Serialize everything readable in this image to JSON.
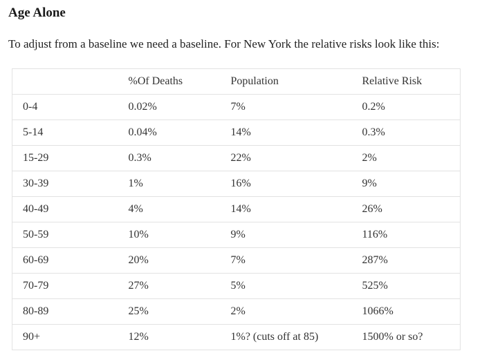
{
  "page": {
    "title": "Age Alone",
    "intro": "To adjust from a baseline we need a baseline. For New York the relative risks look like this:"
  },
  "table": {
    "columns": [
      "",
      "%Of Deaths",
      "Population",
      "Relative Risk"
    ],
    "rows": [
      [
        "0-4",
        "0.02%",
        "7%",
        "0.2%"
      ],
      [
        "5-14",
        "0.04%",
        "14%",
        "0.3%"
      ],
      [
        "15-29",
        "0.3%",
        "22%",
        "2%"
      ],
      [
        "30-39",
        "1%",
        "16%",
        "9%"
      ],
      [
        "40-49",
        "4%",
        "14%",
        "26%"
      ],
      [
        "50-59",
        "10%",
        "9%",
        "116%"
      ],
      [
        "60-69",
        "20%",
        "7%",
        "287%"
      ],
      [
        "70-79",
        "27%",
        "5%",
        "525%"
      ],
      [
        "80-89",
        "25%",
        "2%",
        "1066%"
      ],
      [
        "90+",
        "12%",
        "1%? (cuts off at 85)",
        "1500% or so?"
      ]
    ]
  },
  "colors": {
    "background": "#ffffff",
    "text": "#333333",
    "heading": "#1a1a1a",
    "border": "#e2e2e2"
  }
}
